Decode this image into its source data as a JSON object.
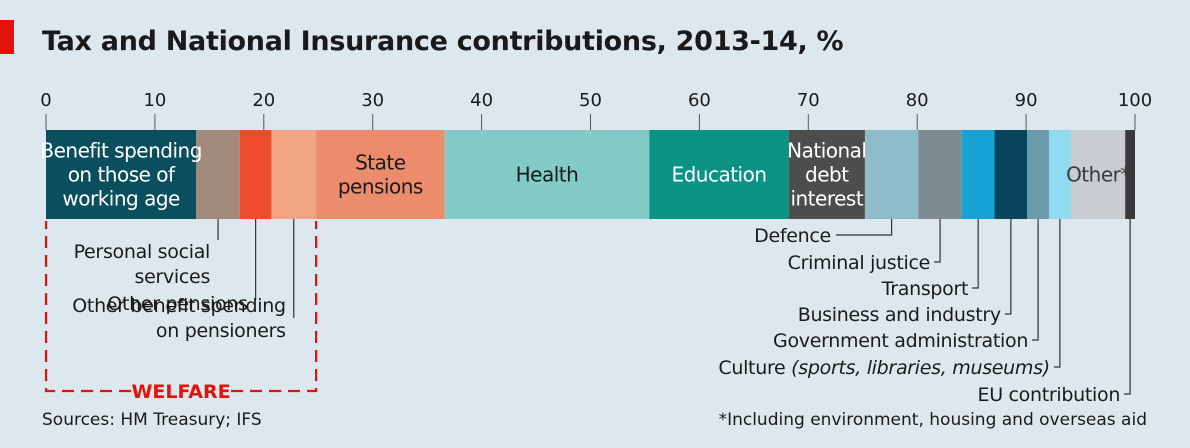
{
  "title": "Tax and National Insurance contributions, 2013-14, %",
  "source": "Sources: HM Treasury; IFS",
  "footnote": "*Including environment, housing and overseas aid",
  "colors": {
    "accent": "#e3120b",
    "background": "#dde8ee",
    "welfare_bracket": "#e3120b"
  },
  "chart_data": {
    "type": "bar",
    "orientation": "horizontal-stacked",
    "xlim": [
      0,
      100
    ],
    "ticks": [
      "0",
      "10",
      "20",
      "30",
      "40",
      "50",
      "60",
      "70",
      "80",
      "90",
      "100"
    ],
    "segments": [
      {
        "name": "Benefit spending on those of working age",
        "value": 13.8,
        "color": "#0b4f5f",
        "label_lines": [
          "Benefit spending",
          "on those of",
          "working age"
        ],
        "label_color": "#ffffff"
      },
      {
        "name": "Personal social services",
        "value": 4.0,
        "color": "#a28b7d",
        "callout_lines": [
          "Personal social",
          "services"
        ]
      },
      {
        "name": "Other pensions",
        "value": 2.9,
        "color": "#ee4c2a",
        "callout_lines": [
          "Other pensions"
        ]
      },
      {
        "name": "Other benefit spending on pensioners",
        "value": 4.1,
        "color": "#f2a585",
        "callout_lines": [
          "Other benefit spending",
          "on pensioners"
        ]
      },
      {
        "name": "State pensions",
        "value": 11.8,
        "color": "#ec8c6c",
        "label_lines": [
          "State",
          "pensions"
        ],
        "label_color": "#1a1a1a"
      },
      {
        "name": "Health",
        "value": 18.8,
        "color": "#82cbc7",
        "label_lines": [
          "Health"
        ],
        "label_color": "#1a1a1a"
      },
      {
        "name": "Education",
        "value": 12.8,
        "color": "#0a9385",
        "label_lines": [
          "Education"
        ],
        "label_color": "#ffffff"
      },
      {
        "name": "National debt interest",
        "value": 7.0,
        "color": "#4d4d4d",
        "label_lines": [
          "National",
          "debt",
          "interest"
        ],
        "label_color": "#ffffff"
      },
      {
        "name": "Defence",
        "value": 4.9,
        "color": "#8dbcc8",
        "callout_lines": [
          "Defence"
        ]
      },
      {
        "name": "Criminal justice",
        "value": 4.0,
        "color": "#7e8b93",
        "callout_lines": [
          "Criminal justice"
        ]
      },
      {
        "name": "Transport",
        "value": 3.0,
        "color": "#17a2d6",
        "callout_lines": [
          "Transport"
        ]
      },
      {
        "name": "Business and industry",
        "value": 3.0,
        "color": "#08465e",
        "callout_lines": [
          "Business and industry"
        ]
      },
      {
        "name": "Government administration",
        "value": 2.0,
        "color": "#6b9aac",
        "callout_lines": [
          "Government administration"
        ]
      },
      {
        "name": "Culture (sports, libraries, museums)",
        "value": 2.0,
        "color": "#8fd9f1",
        "callout_lines": [
          "Culture (sports, libraries, museums)"
        ],
        "callout_italic": "(sports, libraries, museums)"
      },
      {
        "name": "Other*",
        "value": 5.0,
        "color": "#c7cdd0",
        "label_lines": [
          "Other*"
        ],
        "label_color": "#3a3a3a"
      },
      {
        "name": "EU contribution",
        "value": 0.9,
        "color": "#3a3a3a",
        "callout_lines": [
          "EU contribution"
        ]
      }
    ],
    "bracket": {
      "label": "WELFARE",
      "from": 0,
      "to": 24.8
    }
  }
}
